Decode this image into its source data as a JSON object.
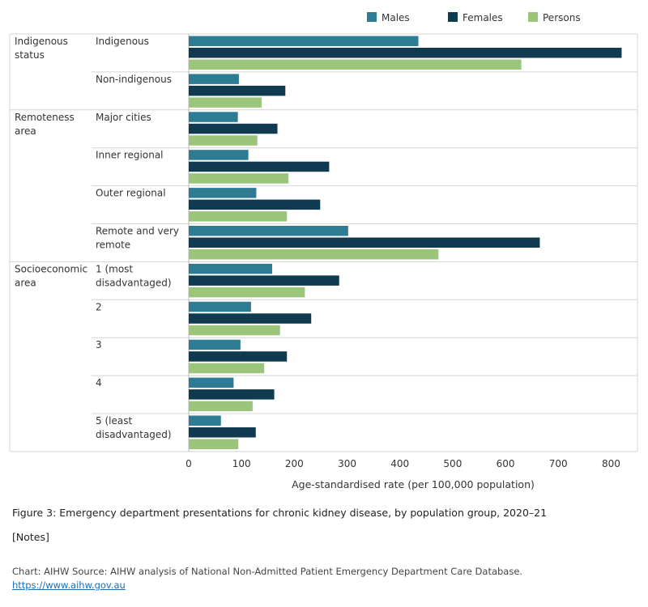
{
  "chart_data": {
    "type": "bar",
    "orientation": "horizontal",
    "title": "Figure 3: Emergency department presentations for chronic kidney disease, by population group, 2020–21",
    "xlabel": "Age-standardised rate (per 100,000 population)",
    "xlim": [
      0,
      850
    ],
    "xticks": [
      0,
      100,
      200,
      300,
      400,
      500,
      600,
      700,
      800
    ],
    "legend_position": "top-right",
    "colors": {
      "Males": "#2e7c94",
      "Females": "#0f3a4f",
      "Persons": "#9bc57a"
    },
    "groups": [
      {
        "label": "Indigenous status",
        "categories": [
          "Indigenous",
          "Non-indigenous"
        ]
      },
      {
        "label": "Remoteness area",
        "categories": [
          "Major cities",
          "Inner regional",
          "Outer regional",
          "Remote and very remote"
        ]
      },
      {
        "label": "Socioeconomic area",
        "categories": [
          "1 (most disadvantaged)",
          "2",
          "3",
          "4",
          "5 (least disadvantaged)"
        ]
      }
    ],
    "categories": [
      "Indigenous",
      "Non-indigenous",
      "Major cities",
      "Inner regional",
      "Outer regional",
      "Remote and very remote",
      "1 (most disadvantaged)",
      "2",
      "3",
      "4",
      "5 (least disadvantaged)"
    ],
    "series": [
      {
        "name": "Males",
        "values": [
          435,
          95,
          93,
          113,
          128,
          302,
          158,
          118,
          98,
          85,
          61
        ]
      },
      {
        "name": "Females",
        "values": [
          820,
          183,
          168,
          266,
          249,
          665,
          285,
          232,
          186,
          162,
          127
        ]
      },
      {
        "name": "Persons",
        "values": [
          630,
          138,
          130,
          189,
          186,
          473,
          220,
          173,
          143,
          121,
          94
        ]
      }
    ]
  },
  "notes_label": "[Notes]",
  "source_text": "Chart: AIHW  Source: AIHW analysis of National Non-Admitted Patient Emergency Department Care Database.",
  "source_link": "https://www.aihw.gov.au"
}
